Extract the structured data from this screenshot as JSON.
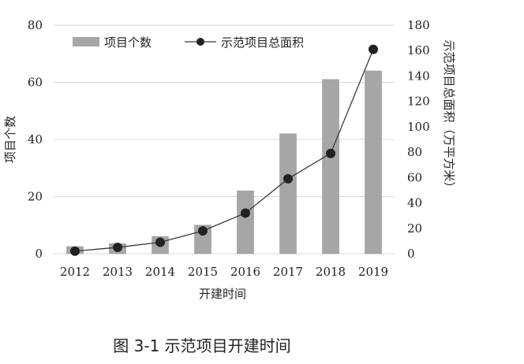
{
  "chart_data": {
    "type": "bar",
    "categories": [
      "2012",
      "2013",
      "2014",
      "2015",
      "2016",
      "2017",
      "2018",
      "2019"
    ],
    "series": [
      {
        "name": "项目个数",
        "type": "bar",
        "axis": "left",
        "values": [
          2.5,
          3.5,
          6,
          10,
          22,
          42,
          61,
          64
        ]
      },
      {
        "name": "示范项目总面积",
        "type": "line",
        "axis": "right",
        "values": [
          2,
          5,
          9,
          18,
          32,
          59,
          79,
          161
        ]
      }
    ],
    "xlabel": "开建时间",
    "ylabel_left": "项目个数",
    "ylabel_right": "示范项目总面积（万平方米）",
    "ylim_left": [
      0,
      80
    ],
    "yticks_left": [
      "0",
      "20",
      "40",
      "60",
      "80"
    ],
    "ylim_right": [
      0,
      180
    ],
    "yticks_right": [
      "0",
      "20",
      "40",
      "60",
      "80",
      "100",
      "120",
      "140",
      "160",
      "180"
    ],
    "grid": true,
    "legend_position": "top",
    "colors": {
      "bar": "#a6a6a6",
      "line": "#3a3a3a",
      "grid": "#d9d9d9"
    }
  },
  "caption": "图 3-1 示范项目开建时间"
}
